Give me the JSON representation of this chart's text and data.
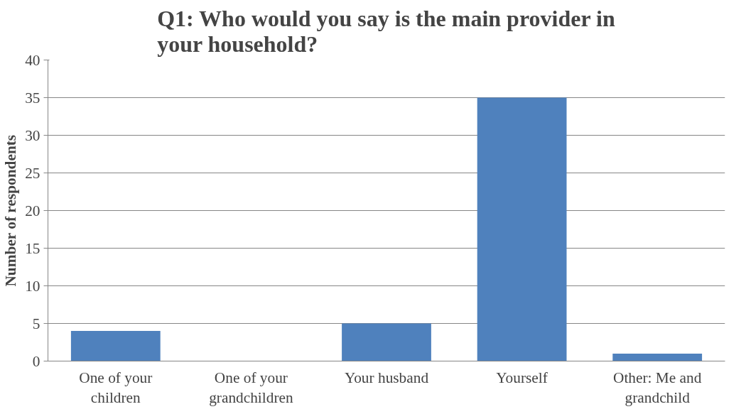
{
  "chart_data": {
    "type": "bar",
    "title": "Q1: Who would you say is the main provider in your household?",
    "ylabel": "Number of respondents",
    "categories": [
      "One of your children",
      "One of your grandchildren",
      "Your husband",
      "Yourself",
      "Other: Me and grandchild"
    ],
    "values": [
      4,
      0,
      5,
      35,
      1
    ],
    "color": "#4f81bd",
    "ylim": [
      0,
      40
    ],
    "yticks": [
      0,
      5,
      10,
      15,
      20,
      25,
      30,
      35,
      40
    ],
    "grid": "y"
  }
}
